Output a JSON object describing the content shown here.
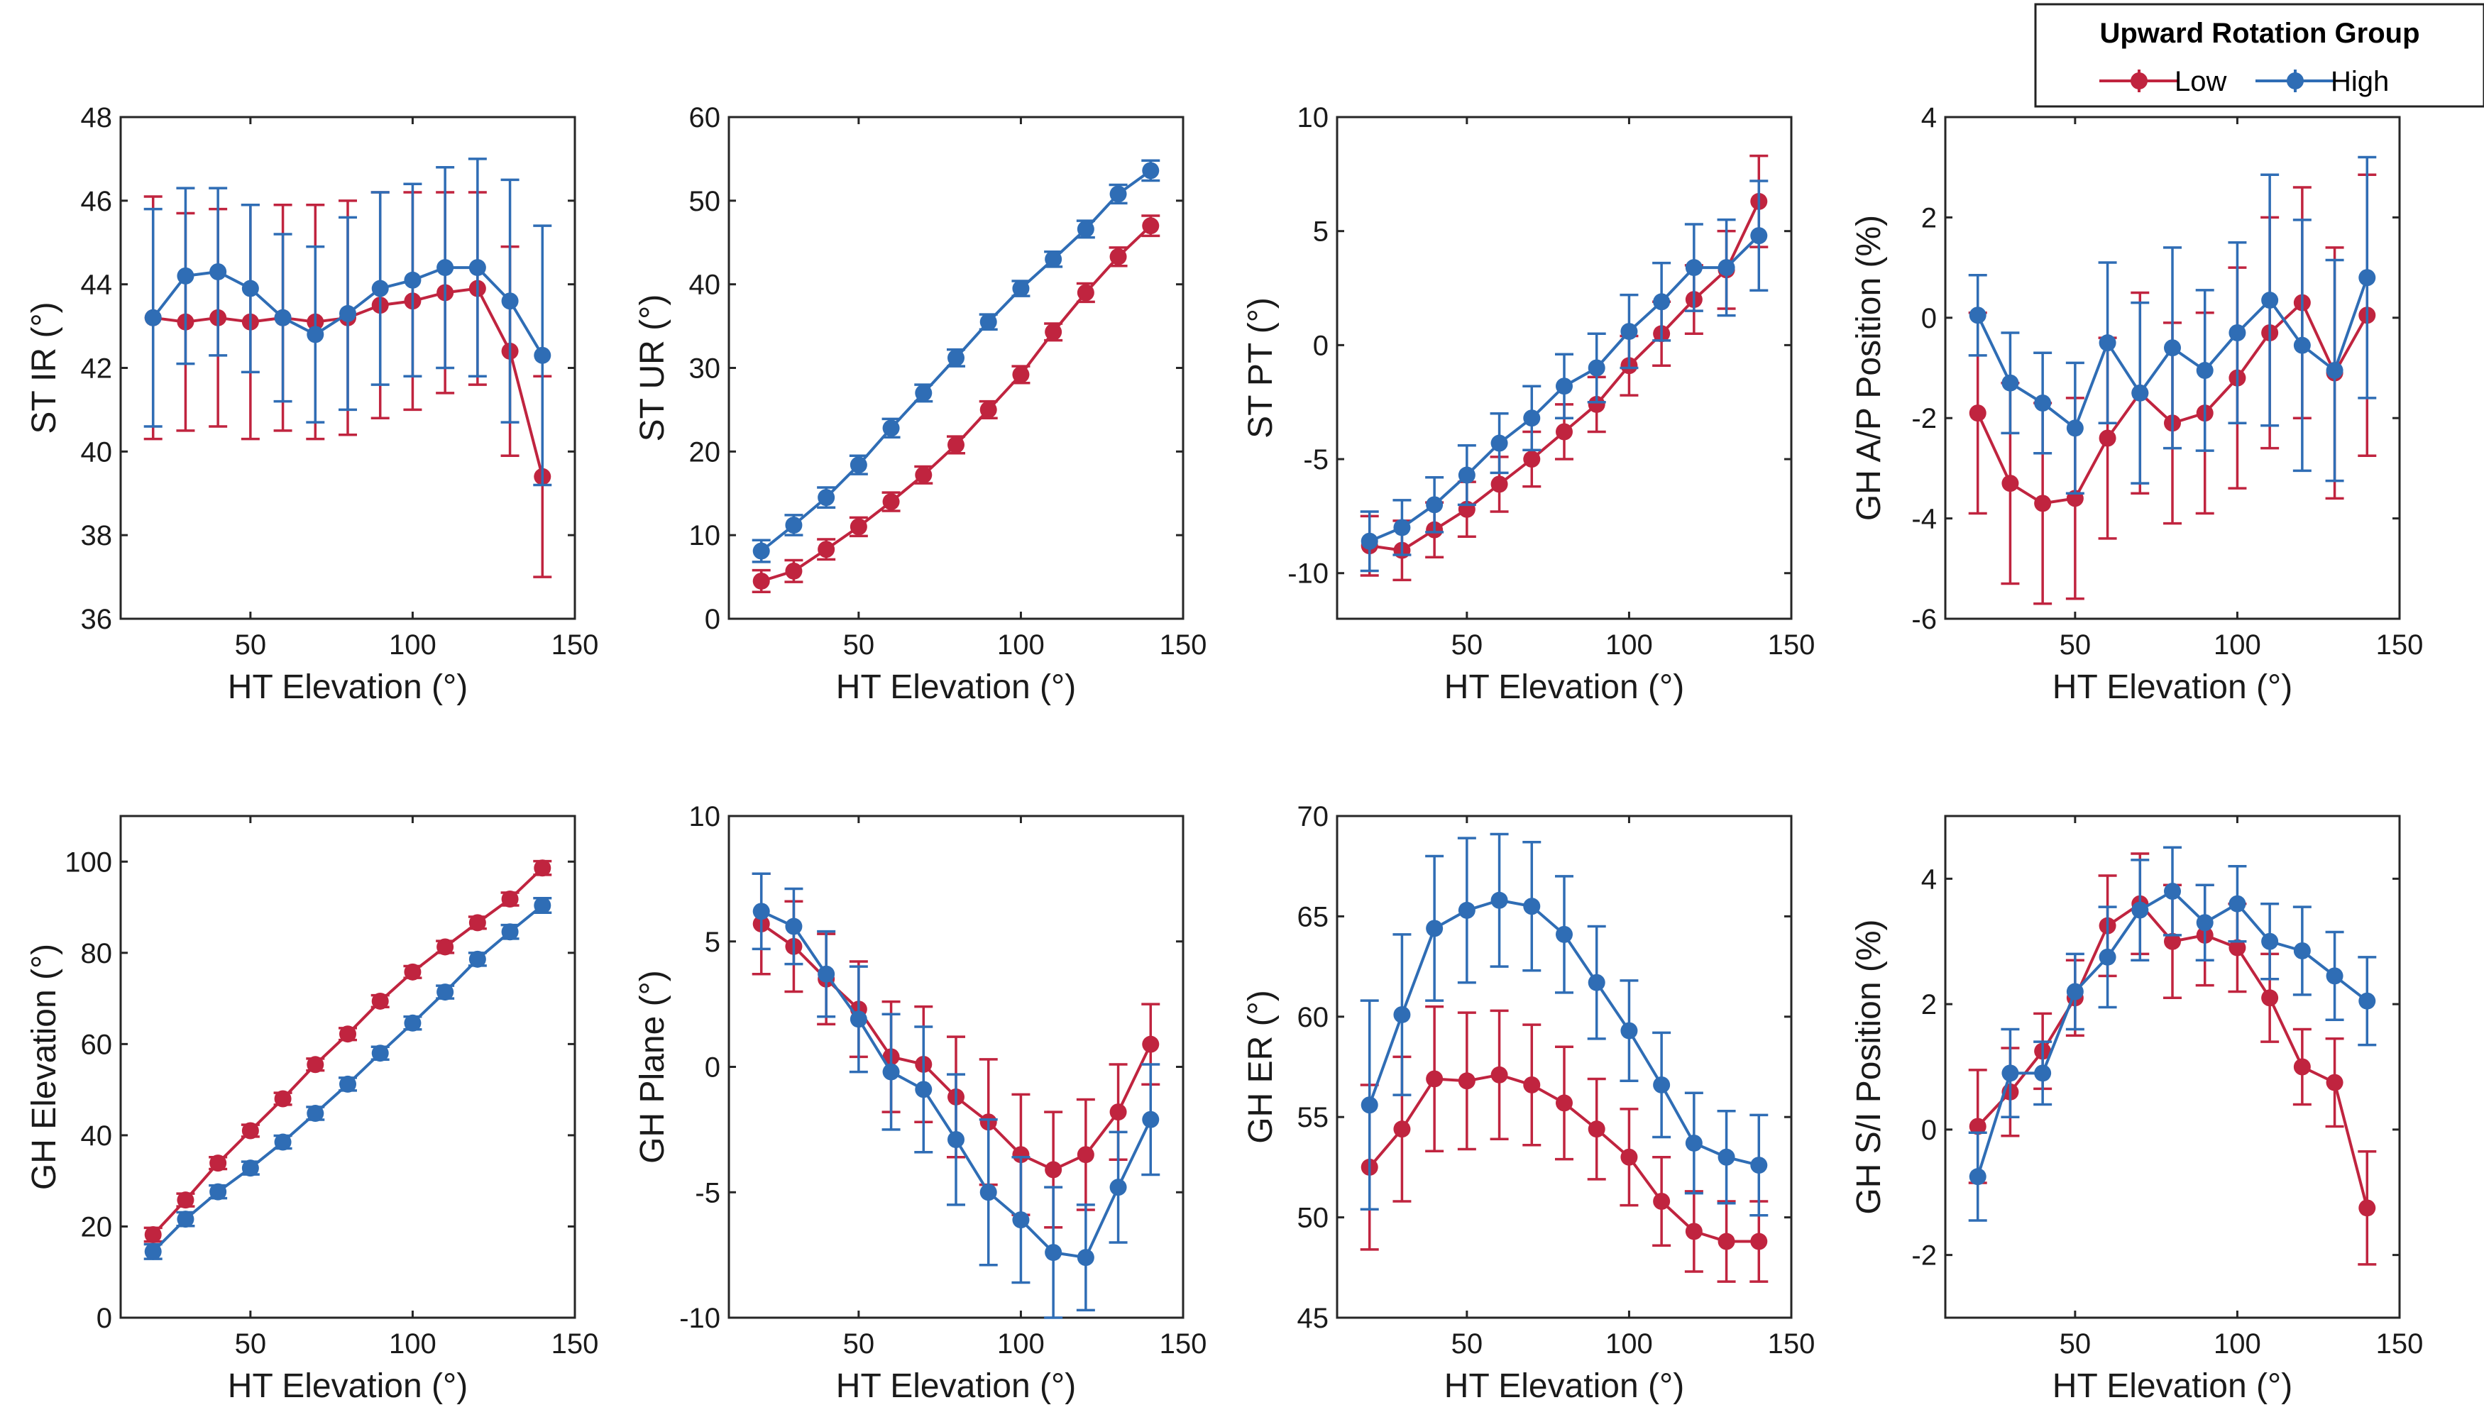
{
  "legend": {
    "title": "Upward Rotation Group",
    "entries": [
      {
        "name": "Low",
        "color": "#C0243F"
      },
      {
        "name": "High",
        "color": "#2F6DB5"
      }
    ]
  },
  "chart_data": [
    {
      "type": "line",
      "xlabel": "HT Elevation (°)",
      "ylabel": "ST IR (°)",
      "xlim": [
        10,
        150
      ],
      "ylim": [
        36,
        48
      ],
      "xticks": [
        50,
        100,
        150
      ],
      "yticks": [
        36,
        38,
        40,
        42,
        44,
        46,
        48
      ],
      "x": [
        20,
        30,
        40,
        50,
        60,
        70,
        80,
        90,
        100,
        110,
        120,
        130,
        140
      ],
      "series": [
        {
          "name": "Low",
          "color": "#C0243F",
          "values": [
            43.2,
            43.1,
            43.2,
            43.1,
            43.2,
            43.1,
            43.2,
            43.5,
            43.6,
            43.8,
            43.9,
            42.4,
            39.4
          ],
          "errors": [
            2.9,
            2.6,
            2.6,
            2.8,
            2.7,
            2.8,
            2.8,
            2.7,
            2.6,
            2.4,
            2.3,
            2.5,
            2.4
          ]
        },
        {
          "name": "High",
          "color": "#2F6DB5",
          "values": [
            43.2,
            44.2,
            44.3,
            43.9,
            43.2,
            42.8,
            43.3,
            43.9,
            44.1,
            44.4,
            44.4,
            43.6,
            42.3
          ],
          "errors": [
            2.6,
            2.1,
            2.0,
            2.0,
            2.0,
            2.1,
            2.3,
            2.3,
            2.3,
            2.4,
            2.6,
            2.9,
            3.1
          ]
        }
      ]
    },
    {
      "type": "line",
      "xlabel": "HT Elevation (°)",
      "ylabel": "ST UR (°)",
      "xlim": [
        10,
        150
      ],
      "ylim": [
        0,
        60
      ],
      "xticks": [
        50,
        100,
        150
      ],
      "yticks": [
        0,
        10,
        20,
        30,
        40,
        50,
        60
      ],
      "x": [
        20,
        30,
        40,
        50,
        60,
        70,
        80,
        90,
        100,
        110,
        120,
        130,
        140
      ],
      "series": [
        {
          "name": "Low",
          "color": "#C0243F",
          "values": [
            4.5,
            5.7,
            8.3,
            11.0,
            14.0,
            17.2,
            20.8,
            25.0,
            29.2,
            34.3,
            39.0,
            43.3,
            47.0
          ],
          "errors": [
            1.3,
            1.3,
            1.2,
            1.1,
            1.1,
            1.0,
            1.0,
            1.0,
            1.0,
            1.0,
            1.1,
            1.1,
            1.2
          ]
        },
        {
          "name": "High",
          "color": "#2F6DB5",
          "values": [
            8.1,
            11.2,
            14.5,
            18.4,
            22.8,
            27.0,
            31.2,
            35.5,
            39.5,
            43.0,
            46.6,
            50.8,
            53.6
          ],
          "errors": [
            1.3,
            1.2,
            1.2,
            1.1,
            1.1,
            1.0,
            1.0,
            0.9,
            0.9,
            0.9,
            1.0,
            1.1,
            1.2
          ]
        }
      ]
    },
    {
      "type": "line",
      "xlabel": "HT Elevation (°)",
      "ylabel": "ST PT (°)",
      "xlim": [
        10,
        150
      ],
      "ylim": [
        -12,
        10
      ],
      "xticks": [
        50,
        100,
        150
      ],
      "yticks": [
        -10,
        -5,
        0,
        5,
        10
      ],
      "x": [
        20,
        30,
        40,
        50,
        60,
        70,
        80,
        90,
        100,
        110,
        120,
        130,
        140
      ],
      "series": [
        {
          "name": "Low",
          "color": "#C0243F",
          "values": [
            -8.8,
            -9.0,
            -8.1,
            -7.2,
            -6.1,
            -5.0,
            -3.8,
            -2.6,
            -0.9,
            0.5,
            2.0,
            3.3,
            6.3
          ],
          "errors": [
            1.3,
            1.3,
            1.2,
            1.2,
            1.2,
            1.2,
            1.2,
            1.2,
            1.3,
            1.4,
            1.5,
            1.7,
            2.0
          ]
        },
        {
          "name": "High",
          "color": "#2F6DB5",
          "values": [
            -8.6,
            -8.0,
            -7.0,
            -5.7,
            -4.3,
            -3.2,
            -1.8,
            -1.0,
            0.6,
            1.9,
            3.4,
            3.4,
            4.8
          ],
          "errors": [
            1.3,
            1.2,
            1.2,
            1.3,
            1.3,
            1.4,
            1.4,
            1.5,
            1.6,
            1.7,
            1.9,
            2.1,
            2.4
          ]
        }
      ]
    },
    {
      "type": "line",
      "xlabel": "HT Elevation (°)",
      "ylabel": "GH A/P Position (%)",
      "xlim": [
        10,
        150
      ],
      "ylim": [
        -6,
        4
      ],
      "xticks": [
        50,
        100,
        150
      ],
      "yticks": [
        -6,
        -4,
        -2,
        0,
        2,
        4
      ],
      "x": [
        20,
        30,
        40,
        50,
        60,
        70,
        80,
        90,
        100,
        110,
        120,
        130,
        140
      ],
      "series": [
        {
          "name": "Low",
          "color": "#C0243F",
          "values": [
            -1.9,
            -3.3,
            -3.7,
            -3.6,
            -2.4,
            -1.5,
            -2.1,
            -1.9,
            -1.2,
            -0.3,
            0.3,
            -1.1,
            0.05
          ],
          "errors": [
            2.0,
            2.0,
            2.0,
            2.0,
            2.0,
            2.0,
            2.0,
            2.0,
            2.2,
            2.3,
            2.3,
            2.5,
            2.8
          ]
        },
        {
          "name": "High",
          "color": "#2F6DB5",
          "values": [
            0.05,
            -1.3,
            -1.7,
            -2.2,
            -0.5,
            -1.5,
            -0.6,
            -1.05,
            -0.3,
            0.35,
            -0.55,
            -1.05,
            0.8
          ],
          "errors": [
            0.8,
            1.0,
            1.0,
            1.3,
            1.6,
            1.8,
            2.0,
            1.6,
            1.8,
            2.5,
            2.5,
            2.2,
            2.4
          ]
        }
      ]
    },
    {
      "type": "line",
      "xlabel": "HT Elevation (°)",
      "ylabel": "GH Elevation (°)",
      "xlim": [
        10,
        150
      ],
      "ylim": [
        0,
        110
      ],
      "xticks": [
        50,
        100,
        150
      ],
      "yticks": [
        0,
        20,
        40,
        60,
        80,
        100
      ],
      "x": [
        20,
        30,
        40,
        50,
        60,
        70,
        80,
        90,
        100,
        110,
        120,
        130,
        140
      ],
      "series": [
        {
          "name": "Low",
          "color": "#C0243F",
          "values": [
            18.2,
            25.8,
            33.9,
            41.0,
            48.0,
            55.5,
            62.2,
            69.4,
            75.8,
            81.3,
            86.6,
            91.8,
            98.6
          ],
          "errors": [
            1.5,
            1.4,
            1.3,
            1.3,
            1.3,
            1.3,
            1.3,
            1.3,
            1.3,
            1.3,
            1.3,
            1.4,
            1.5
          ]
        },
        {
          "name": "High",
          "color": "#2F6DB5",
          "values": [
            14.5,
            21.6,
            27.6,
            32.8,
            38.5,
            44.8,
            51.2,
            58.0,
            64.6,
            71.4,
            78.6,
            84.6,
            90.4
          ],
          "errors": [
            1.6,
            1.5,
            1.4,
            1.4,
            1.4,
            1.4,
            1.4,
            1.4,
            1.4,
            1.4,
            1.4,
            1.5,
            1.6
          ]
        }
      ]
    },
    {
      "type": "line",
      "xlabel": "HT Elevation (°)",
      "ylabel": "GH Plane (°)",
      "xlim": [
        10,
        150
      ],
      "ylim": [
        -10,
        10
      ],
      "xticks": [
        50,
        100,
        150
      ],
      "yticks": [
        -10,
        -5,
        0,
        5,
        10
      ],
      "x": [
        20,
        30,
        40,
        50,
        60,
        70,
        80,
        90,
        100,
        110,
        120,
        130,
        140
      ],
      "series": [
        {
          "name": "Low",
          "color": "#C0243F",
          "values": [
            5.7,
            4.8,
            3.5,
            2.3,
            0.4,
            0.1,
            -1.2,
            -2.2,
            -3.5,
            -4.1,
            -3.5,
            -1.8,
            0.9
          ],
          "errors": [
            2.0,
            1.8,
            1.8,
            1.9,
            2.2,
            2.3,
            2.4,
            2.5,
            2.4,
            2.3,
            2.2,
            1.9,
            1.6
          ]
        },
        {
          "name": "High",
          "color": "#2F6DB5",
          "values": [
            6.2,
            5.6,
            3.7,
            1.9,
            -0.2,
            -0.9,
            -2.9,
            -5.0,
            -6.1,
            -7.4,
            -7.6,
            -4.8,
            -2.1
          ],
          "errors": [
            1.5,
            1.5,
            1.7,
            2.1,
            2.3,
            2.5,
            2.6,
            2.9,
            2.5,
            2.6,
            2.1,
            2.2,
            2.2
          ]
        }
      ]
    },
    {
      "type": "line",
      "xlabel": "HT Elevation (°)",
      "ylabel": "GH ER (°)",
      "xlim": [
        10,
        150
      ],
      "ylim": [
        45,
        70
      ],
      "xticks": [
        50,
        100,
        150
      ],
      "yticks": [
        45,
        50,
        55,
        60,
        65,
        70
      ],
      "x": [
        20,
        30,
        40,
        50,
        60,
        70,
        80,
        90,
        100,
        110,
        120,
        130,
        140
      ],
      "series": [
        {
          "name": "Low",
          "color": "#C0243F",
          "values": [
            52.5,
            54.4,
            56.9,
            56.8,
            57.1,
            56.6,
            55.7,
            54.4,
            53.0,
            50.8,
            49.3,
            48.8,
            48.8
          ],
          "errors": [
            4.1,
            3.6,
            3.6,
            3.4,
            3.2,
            3.0,
            2.8,
            2.5,
            2.4,
            2.2,
            2.0,
            2.0,
            2.0
          ]
        },
        {
          "name": "High",
          "color": "#2F6DB5",
          "values": [
            55.6,
            60.1,
            64.4,
            65.3,
            65.8,
            65.5,
            64.1,
            61.7,
            59.3,
            56.6,
            53.7,
            53.0,
            52.6
          ],
          "errors": [
            5.2,
            4.0,
            3.6,
            3.6,
            3.3,
            3.2,
            2.9,
            2.8,
            2.5,
            2.6,
            2.5,
            2.3,
            2.5
          ]
        }
      ]
    },
    {
      "type": "line",
      "xlabel": "HT Elevation (°)",
      "ylabel": "GH S/I Position (%)",
      "xlim": [
        10,
        150
      ],
      "ylim": [
        -3,
        5
      ],
      "xticks": [
        50,
        100,
        150
      ],
      "yticks": [
        -2,
        0,
        2,
        4
      ],
      "x": [
        20,
        30,
        40,
        50,
        60,
        70,
        80,
        90,
        100,
        110,
        120,
        130,
        140
      ],
      "series": [
        {
          "name": "Low",
          "color": "#C0243F",
          "values": [
            0.05,
            0.6,
            1.25,
            2.1,
            3.25,
            3.6,
            3.0,
            3.1,
            2.9,
            2.1,
            1.0,
            0.75,
            -1.25
          ],
          "errors": [
            0.9,
            0.7,
            0.6,
            0.6,
            0.8,
            0.8,
            0.9,
            0.8,
            0.7,
            0.7,
            0.6,
            0.7,
            0.9
          ]
        },
        {
          "name": "High",
          "color": "#2F6DB5",
          "values": [
            -0.75,
            0.9,
            0.9,
            2.2,
            2.75,
            3.5,
            3.8,
            3.3,
            3.6,
            3.0,
            2.85,
            2.45,
            2.05
          ],
          "errors": [
            0.7,
            0.7,
            0.5,
            0.6,
            0.8,
            0.8,
            0.7,
            0.6,
            0.6,
            0.6,
            0.7,
            0.7,
            0.7
          ]
        }
      ]
    }
  ]
}
